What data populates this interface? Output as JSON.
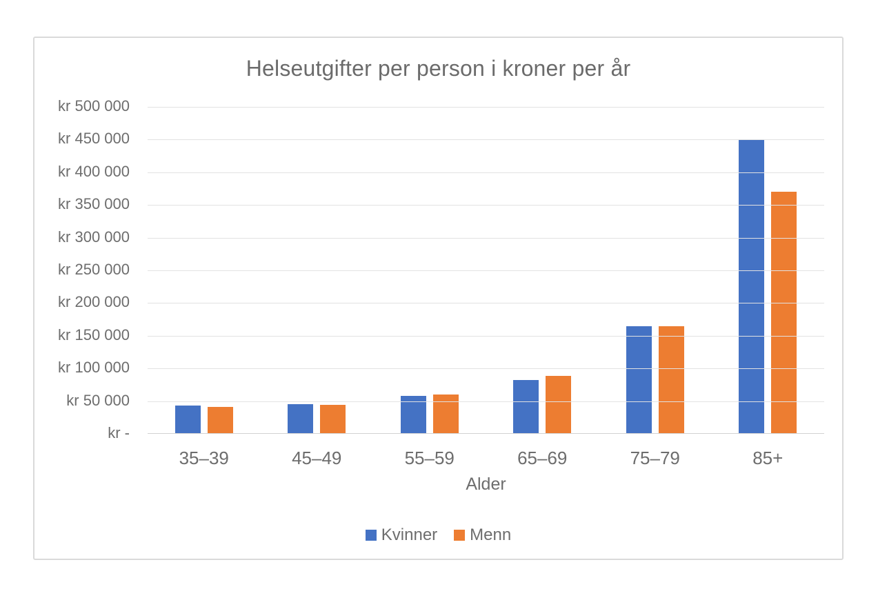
{
  "chart_data": {
    "type": "bar",
    "title": "Helseutgifter per person i kroner per år",
    "xlabel": "Alder",
    "ylabel": "",
    "categories": [
      "35–39",
      "45–49",
      "55–59",
      "65–69",
      "75–79",
      "85+"
    ],
    "series": [
      {
        "name": "Kvinner",
        "color": "#4472C4",
        "values": [
          43000,
          45000,
          58000,
          82000,
          165000,
          450000
        ]
      },
      {
        "name": "Menn",
        "color": "#ED7D31",
        "values": [
          41000,
          44000,
          60000,
          89000,
          165000,
          370000
        ]
      }
    ],
    "ylim": [
      0,
      500000
    ],
    "ytick_step": 50000,
    "ytick_labels": [
      "kr -",
      "kr 50 000",
      "kr 100 000",
      "kr 150 000",
      "kr 200 000",
      "kr 250 000",
      "kr 300 000",
      "kr 350 000",
      "kr 400 000",
      "kr 450 000",
      "kr 500 000"
    ],
    "grid": true,
    "legend_position": "bottom"
  }
}
